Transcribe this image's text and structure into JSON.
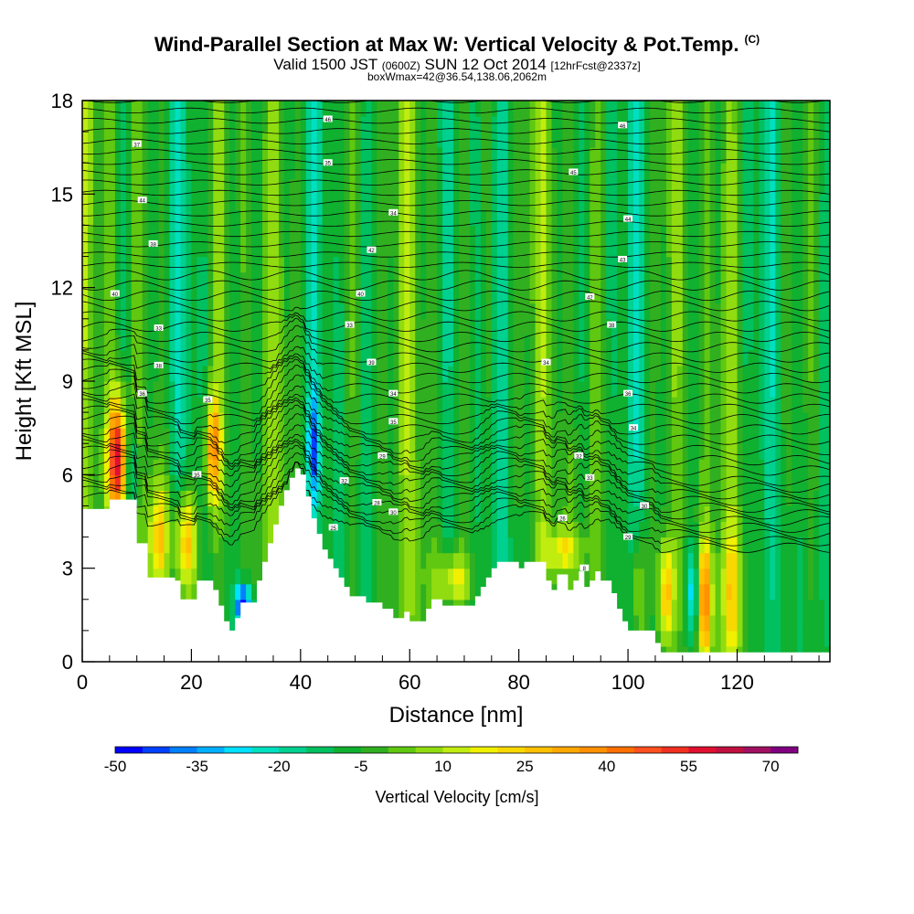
{
  "header": {
    "title": "Wind-Parallel Section at Max W: Vertical Velocity & Pot.Temp.",
    "copyright": "(C)",
    "subtitle_main": "Valid 1500 JST",
    "subtitle_z": "(0600Z)",
    "subtitle_date": "SUN 12 Oct 2014",
    "subtitle_fcst": "[12hrFcst@2337z]",
    "box_info": "boxWmax=42@36.54,138.06,2062m"
  },
  "chart_data": {
    "type": "heatmap",
    "title": "Wind-Parallel Section at Max W: Vertical Velocity & Pot.Temp.",
    "xlabel": "Distance [nm]",
    "ylabel": "Height [Kft MSL]",
    "xlim": [
      0,
      137
    ],
    "ylim": [
      0,
      18
    ],
    "x_ticks": [
      0,
      20,
      40,
      60,
      80,
      100,
      120
    ],
    "y_ticks": [
      0,
      3,
      6,
      9,
      12,
      15,
      18
    ],
    "colorbar": {
      "label": "Vertical Velocity [cm/s]",
      "ticks": [
        -50,
        -35,
        -20,
        -5,
        10,
        25,
        40,
        55,
        70
      ],
      "levels": [
        -50,
        -45,
        -40,
        -35,
        -30,
        -25,
        -20,
        -15,
        -10,
        -5,
        0,
        5,
        10,
        15,
        20,
        25,
        30,
        35,
        40,
        45,
        50,
        55,
        60,
        65,
        70,
        75
      ],
      "colors": [
        "#0000ff",
        "#0040ff",
        "#0080ff",
        "#00b0ff",
        "#00e0ff",
        "#00e0c0",
        "#00d090",
        "#00c060",
        "#10b030",
        "#30b020",
        "#60c810",
        "#90dc10",
        "#c0ec10",
        "#f0f000",
        "#f8d800",
        "#ffc000",
        "#ffa800",
        "#ff9000",
        "#ff7000",
        "#ff5020",
        "#f03020",
        "#e01030",
        "#c01040",
        "#a01060",
        "#800080"
      ]
    },
    "terrain_kft": [
      [
        0,
        4.9
      ],
      [
        5,
        4.9
      ],
      [
        5,
        5.2
      ],
      [
        10,
        5.2
      ],
      [
        10,
        3.8
      ],
      [
        12,
        3.8
      ],
      [
        12,
        2.7
      ],
      [
        17,
        2.7
      ],
      [
        17,
        2.6
      ],
      [
        18,
        2.6
      ],
      [
        18,
        2.0
      ],
      [
        21,
        2.0
      ],
      [
        21,
        2.6
      ],
      [
        24,
        2.6
      ],
      [
        24,
        2.3
      ],
      [
        25,
        2.3
      ],
      [
        25,
        1.8
      ],
      [
        26,
        1.8
      ],
      [
        26,
        1.3
      ],
      [
        27,
        1.3
      ],
      [
        27,
        1.0
      ],
      [
        28,
        1.0
      ],
      [
        28,
        1.4
      ],
      [
        29,
        1.4
      ],
      [
        29,
        1.9
      ],
      [
        32,
        1.9
      ],
      [
        32,
        2.6
      ],
      [
        33,
        2.6
      ],
      [
        33,
        3.2
      ],
      [
        34,
        3.2
      ],
      [
        34,
        3.8
      ],
      [
        35,
        3.8
      ],
      [
        35,
        4.4
      ],
      [
        36,
        4.4
      ],
      [
        36,
        5.0
      ],
      [
        37,
        5.0
      ],
      [
        37,
        5.5
      ],
      [
        38,
        5.5
      ],
      [
        38,
        5.9
      ],
      [
        39,
        5.9
      ],
      [
        39,
        6.2
      ],
      [
        40,
        6.2
      ],
      [
        40,
        6.0
      ],
      [
        41,
        6.0
      ],
      [
        41,
        5.3
      ],
      [
        42,
        5.3
      ],
      [
        42,
        4.6
      ],
      [
        43,
        4.6
      ],
      [
        43,
        4.1
      ],
      [
        44,
        4.1
      ],
      [
        44,
        3.6
      ],
      [
        45,
        3.6
      ],
      [
        45,
        3.3
      ],
      [
        46,
        3.3
      ],
      [
        46,
        3.0
      ],
      [
        47,
        3.0
      ],
      [
        47,
        2.7
      ],
      [
        48,
        2.7
      ],
      [
        48,
        2.4
      ],
      [
        49,
        2.4
      ],
      [
        49,
        2.1
      ],
      [
        52,
        2.1
      ],
      [
        52,
        1.9
      ],
      [
        55,
        1.9
      ],
      [
        55,
        1.7
      ],
      [
        57,
        1.7
      ],
      [
        57,
        1.4
      ],
      [
        59,
        1.4
      ],
      [
        59,
        1.6
      ],
      [
        60,
        1.6
      ],
      [
        60,
        1.3
      ],
      [
        63,
        1.3
      ],
      [
        63,
        1.7
      ],
      [
        64,
        1.7
      ],
      [
        64,
        2.0
      ],
      [
        66,
        2.0
      ],
      [
        66,
        1.8
      ],
      [
        72,
        1.8
      ],
      [
        72,
        2.1
      ],
      [
        73,
        2.1
      ],
      [
        73,
        2.4
      ],
      [
        74,
        2.4
      ],
      [
        74,
        2.7
      ],
      [
        75,
        2.7
      ],
      [
        75,
        3.0
      ],
      [
        76,
        3.0
      ],
      [
        76,
        3.2
      ],
      [
        80,
        3.2
      ],
      [
        80,
        3.0
      ],
      [
        81,
        3.0
      ],
      [
        81,
        3.2
      ],
      [
        85,
        3.2
      ],
      [
        85,
        2.6
      ],
      [
        86,
        2.6
      ],
      [
        86,
        2.3
      ],
      [
        87,
        2.3
      ],
      [
        87,
        2.8
      ],
      [
        89,
        2.8
      ],
      [
        89,
        2.3
      ],
      [
        90,
        2.3
      ],
      [
        90,
        2.6
      ],
      [
        91,
        2.6
      ],
      [
        91,
        2.9
      ],
      [
        92,
        2.9
      ],
      [
        92,
        2.4
      ],
      [
        93,
        2.4
      ],
      [
        93,
        2.6
      ],
      [
        94,
        2.6
      ],
      [
        94,
        2.9
      ],
      [
        95,
        2.9
      ],
      [
        95,
        2.6
      ],
      [
        97,
        2.6
      ],
      [
        97,
        2.2
      ],
      [
        98,
        2.2
      ],
      [
        98,
        1.7
      ],
      [
        99,
        1.7
      ],
      [
        99,
        1.3
      ],
      [
        100,
        1.3
      ],
      [
        100,
        1.0
      ],
      [
        105,
        1.0
      ],
      [
        105,
        0.6
      ],
      [
        106,
        0.6
      ],
      [
        106,
        0.3
      ],
      [
        137,
        0.3
      ]
    ],
    "theta_labels": [
      [
        45,
        17.4,
        "46"
      ],
      [
        99,
        17.2,
        "46"
      ],
      [
        10,
        16.6,
        "37"
      ],
      [
        45,
        16.0,
        "35"
      ],
      [
        90,
        15.7,
        "45"
      ],
      [
        11,
        14.8,
        "44"
      ],
      [
        57,
        14.4,
        "34"
      ],
      [
        100,
        14.2,
        "44"
      ],
      [
        13,
        13.4,
        "38"
      ],
      [
        53,
        13.2,
        "42"
      ],
      [
        99,
        12.9,
        "43"
      ],
      [
        6,
        11.8,
        "40"
      ],
      [
        51,
        11.8,
        "40"
      ],
      [
        93,
        11.7,
        "42"
      ],
      [
        14,
        10.7,
        "33"
      ],
      [
        49,
        10.8,
        "33"
      ],
      [
        97,
        10.8,
        "38"
      ],
      [
        14,
        9.5,
        "38"
      ],
      [
        53,
        9.6,
        "39"
      ],
      [
        85,
        9.6,
        "34"
      ],
      [
        11,
        8.6,
        "36"
      ],
      [
        23,
        8.4,
        "35"
      ],
      [
        57,
        8.6,
        "34"
      ],
      [
        100,
        8.6,
        "36"
      ],
      [
        57,
        7.7,
        "35"
      ],
      [
        101,
        7.5,
        "34"
      ],
      [
        21,
        6.0,
        "35"
      ],
      [
        55,
        6.6,
        "29"
      ],
      [
        91,
        6.6,
        "32"
      ],
      [
        93,
        5.9,
        "33"
      ],
      [
        48,
        5.8,
        "32"
      ],
      [
        54,
        5.1,
        "28"
      ],
      [
        57,
        4.8,
        "30"
      ],
      [
        88,
        4.6,
        "26"
      ],
      [
        100,
        4.0,
        "29"
      ],
      [
        103,
        5.0,
        "30"
      ],
      [
        46,
        4.3,
        "25"
      ],
      [
        92,
        3.0,
        "8"
      ]
    ]
  }
}
